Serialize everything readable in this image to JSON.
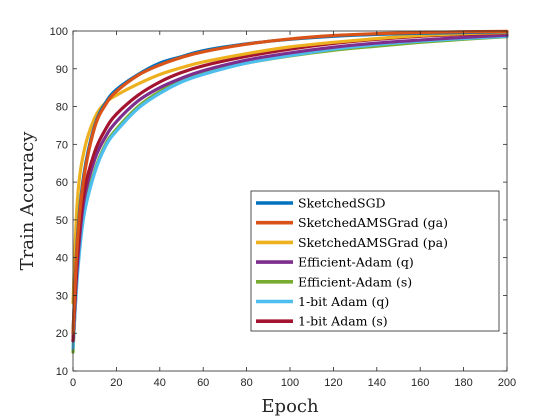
{
  "chart_data": {
    "type": "line",
    "xlabel": "Epoch",
    "ylabel": "Train Accuracy",
    "xlim": [
      0,
      200
    ],
    "ylim": [
      10,
      100
    ],
    "xticks": [
      0,
      20,
      40,
      60,
      80,
      100,
      120,
      140,
      160,
      180,
      200
    ],
    "yticks": [
      10,
      20,
      30,
      40,
      50,
      60,
      70,
      80,
      90,
      100
    ],
    "xtick_labels": [
      "0",
      "20",
      "40",
      "60",
      "80",
      "100",
      "120",
      "140",
      "160",
      "180",
      "200"
    ],
    "ytick_labels": [
      "10",
      "20",
      "30",
      "40",
      "50",
      "60",
      "70",
      "80",
      "90",
      "100"
    ],
    "grid": false,
    "box": true,
    "legend_position": "lower-right",
    "x": [
      0,
      2,
      5,
      10,
      15,
      20,
      30,
      40,
      50,
      60,
      80,
      100,
      120,
      140,
      160,
      180,
      200
    ],
    "series": [
      {
        "name": "SketchedSGD",
        "color": "#0072BD",
        "values": [
          20,
          45,
          62,
          75,
          81,
          84.5,
          88.5,
          91.5,
          93.2,
          94.8,
          96.6,
          97.8,
          98.6,
          99.1,
          99.4,
          99.6,
          99.8
        ]
      },
      {
        "name": "SketchedAMSGrad (ga)",
        "color": "#D95319",
        "values": [
          20,
          44,
          61,
          74.5,
          80.5,
          84,
          88.3,
          91,
          93,
          94.5,
          96.5,
          97.9,
          98.8,
          99.3,
          99.6,
          99.8,
          99.9
        ]
      },
      {
        "name": "SketchedAMSGrad (pa)",
        "color": "#EDB120",
        "values": [
          28,
          55,
          68,
          77,
          81,
          83,
          86,
          88.5,
          90.3,
          91.8,
          94,
          95.8,
          97,
          98,
          98.8,
          99.3,
          99.6
        ]
      },
      {
        "name": "Efficient-Adam (q)",
        "color": "#7E2F8E",
        "values": [
          18,
          38,
          55,
          66,
          72,
          76,
          81.5,
          85,
          87.5,
          89.5,
          92.3,
          94.2,
          95.7,
          96.8,
          97.6,
          98.3,
          98.9
        ]
      },
      {
        "name": "Efficient-Adam (s)",
        "color": "#77AC30",
        "values": [
          15,
          36,
          52,
          63,
          70,
          74,
          80,
          84,
          86.8,
          88.8,
          91.5,
          93.4,
          94.9,
          96,
          97,
          97.8,
          98.5
        ]
      },
      {
        "name": "1-bit Adam (q)",
        "color": "#4DBEEE",
        "values": [
          16,
          35,
          51,
          62.5,
          69.5,
          73.5,
          79.5,
          83.5,
          86.5,
          88.5,
          91.5,
          93.5,
          95.2,
          96.4,
          97.3,
          98,
          98.6
        ]
      },
      {
        "name": "1-bit Adam (s)",
        "color": "#A2142F",
        "values": [
          18,
          40,
          57,
          68,
          74,
          78,
          83,
          86.5,
          89,
          90.8,
          93.3,
          95.2,
          96.7,
          97.8,
          98.6,
          99.1,
          99.5
        ]
      }
    ]
  }
}
